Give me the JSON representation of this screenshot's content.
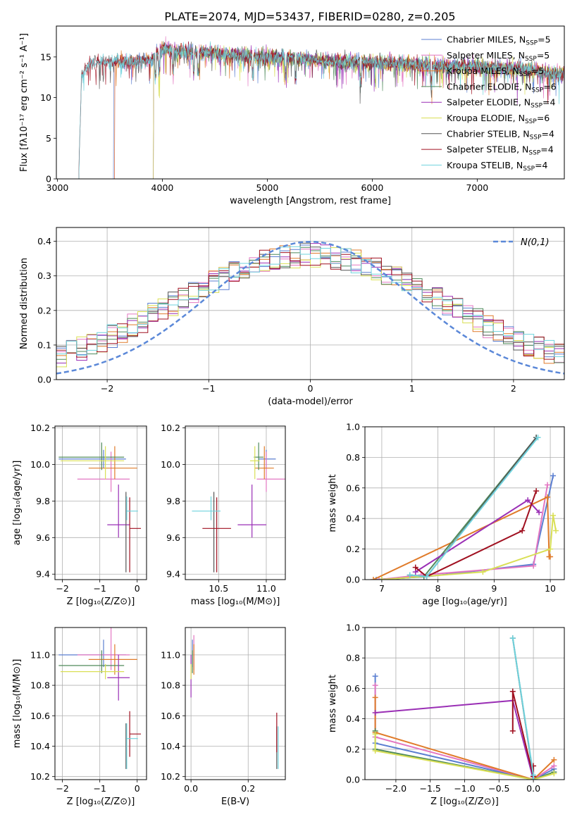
{
  "figure_title": "PLATE=2074, MJD=53437, FIBERID=0280, z=0.205",
  "colors": {
    "c0": "#5b7fd1",
    "c1": "#e377c2",
    "c2": "#e07b2a",
    "c3": "#4f8a5b",
    "c4": "#9a2fb5",
    "c5": "#d9df55",
    "c6": "#555555",
    "c7": "#a01020",
    "c8": "#6fd3dd",
    "ref": "#5b88d8",
    "grid": "#b0b0b0"
  },
  "chart_data": [
    {
      "id": "spectrum",
      "type": "line",
      "xlabel": "wavelength [Angstrom, rest frame]",
      "ylabel": "Flux [fλ10⁻¹⁷ erg cm⁻² s⁻¹ A⁻¹]",
      "xlim": [
        2990,
        7830
      ],
      "ylim": [
        0,
        18.8
      ],
      "xticks": [
        3000,
        4000,
        5000,
        6000,
        7000
      ],
      "yticks": [
        0,
        5,
        10,
        15
      ],
      "grid": false,
      "legend_position": "top-right",
      "legend": [
        {
          "text": "Chabrier MILES, N",
          "sub": "SSP",
          "eq": "=5",
          "color": "c0"
        },
        {
          "text": "Salpeter MILES, N",
          "sub": "SSP",
          "eq": "=5",
          "color": "c1"
        },
        {
          "text": "Kroupa MILES, N",
          "sub": "SSP",
          "eq": "=5",
          "color": "c2"
        },
        {
          "text": "Chabrier ELODIE, N",
          "sub": "SSP",
          "eq": "=6",
          "color": "c3"
        },
        {
          "text": "Salpeter ELODIE, N",
          "sub": "SSP",
          "eq": "=4",
          "color": "c4"
        },
        {
          "text": "Kroupa ELODIE, N",
          "sub": "SSP",
          "eq": "=6",
          "color": "c5"
        },
        {
          "text": "Chabrier STELIB, N",
          "sub": "SSP",
          "eq": "=4",
          "color": "c6"
        },
        {
          "text": "Salpeter STELIB, N",
          "sub": "SSP",
          "eq": "=4",
          "color": "c7"
        },
        {
          "text": "Kroupa STELIB, N",
          "sub": "SSP",
          "eq": "=4",
          "color": "c8"
        }
      ],
      "continuum": {
        "x": [
          3200,
          3230,
          3300,
          3500,
          3700,
          3900,
          4000,
          4100,
          4300,
          4500,
          4700,
          5000,
          5300,
          5600,
          6000,
          6400,
          6800,
          7200,
          7500,
          7700,
          7830
        ],
        "y": [
          0,
          12.5,
          14.2,
          14.5,
          14.4,
          14.6,
          16.0,
          15.8,
          15.6,
          15.5,
          15.2,
          15.0,
          14.8,
          14.5,
          14.3,
          14.1,
          13.9,
          13.6,
          13.4,
          13.0,
          12.9
        ]
      },
      "series": [
        {
          "model": "Chabrier MILES",
          "color": "c0",
          "start": 3530
        },
        {
          "model": "Salpeter MILES",
          "color": "c1",
          "start": 3540
        },
        {
          "model": "Kroupa MILES",
          "color": "c2",
          "start": 3540
        },
        {
          "model": "Chabrier ELODIE",
          "color": "c3",
          "start": 3910
        },
        {
          "model": "Salpeter ELODIE",
          "color": "c4",
          "start": 3910
        },
        {
          "model": "Kroupa ELODIE",
          "color": "c5",
          "start": 3910
        },
        {
          "model": "Chabrier STELIB",
          "color": "c6",
          "start": 3200
        },
        {
          "model": "Salpeter STELIB",
          "color": "c7",
          "start": 3200
        },
        {
          "model": "Kroupa STELIB",
          "color": "c8",
          "start": 3200
        }
      ]
    },
    {
      "id": "residuals",
      "type": "histogram",
      "xlabel": "(data-model)/error",
      "ylabel": "Normed distribution",
      "xlim": [
        -2.5,
        2.5
      ],
      "ylim": [
        0,
        0.44
      ],
      "xticks": [
        -2,
        -1,
        0,
        1,
        2
      ],
      "yticks": [
        0.0,
        0.1,
        0.2,
        0.3,
        0.4
      ],
      "grid": true,
      "bin_width": 0.1,
      "reference": {
        "label": "N(0,1)",
        "mean": 0,
        "sigma": 1
      },
      "legend_position": "top-right"
    },
    {
      "id": "age_vs_Z",
      "type": "errorbar",
      "xlabel": "Z [log₁₀(Z/Z⊙)]",
      "ylabel": "age  [log₁₀(age/yr)]",
      "xlim": [
        -2.2,
        0.25
      ],
      "ylim": [
        9.37,
        10.21
      ],
      "xticks": [
        -2,
        -1,
        0
      ],
      "yticks": [
        9.4,
        9.6,
        9.8,
        10.0,
        10.2
      ],
      "grid": true,
      "points": [
        {
          "color": "c0",
          "x": -0.9,
          "xerr": [
            1.2,
            0.6
          ],
          "y": 10.03,
          "yerr": [
            0.05,
            0.05
          ]
        },
        {
          "color": "c1",
          "x": -0.7,
          "xerr": [
            0.9,
            0.5
          ],
          "y": 9.92,
          "yerr": [
            0.07,
            0.15
          ]
        },
        {
          "color": "c2",
          "x": -0.6,
          "xerr": [
            0.7,
            0.6
          ],
          "y": 9.98,
          "yerr": [
            0.06,
            0.12
          ]
        },
        {
          "color": "c3",
          "x": -0.95,
          "xerr": [
            1.15,
            0.6
          ],
          "y": 10.04,
          "yerr": [
            0.07,
            0.08
          ]
        },
        {
          "color": "c4",
          "x": -0.5,
          "xerr": [
            0.3,
            0.3
          ],
          "y": 9.67,
          "yerr": [
            0.07,
            0.22
          ]
        },
        {
          "color": "c5",
          "x": -0.85,
          "xerr": [
            1.2,
            0.5
          ],
          "y": 10.02,
          "yerr": [
            0.1,
            0.08
          ]
        },
        {
          "color": "c6",
          "x": -0.3,
          "xerr": [
            0.0,
            0.0
          ],
          "y": 9.67,
          "yerr": [
            0.26,
            0.18
          ]
        },
        {
          "color": "c7",
          "x": -0.2,
          "xerr": [
            0.0,
            0.3
          ],
          "y": 9.65,
          "yerr": [
            0.24,
            0.17
          ]
        },
        {
          "color": "c8",
          "x": -0.28,
          "xerr": [
            0.0,
            0.3
          ],
          "y": 9.745,
          "yerr": [
            0.05,
            0.08
          ]
        }
      ]
    },
    {
      "id": "age_vs_mass",
      "type": "errorbar",
      "xlabel": "mass [log₁₀(M/M⊙)]",
      "ylabel": "",
      "xlim": [
        10.15,
        11.2
      ],
      "ylim": [
        9.37,
        10.21
      ],
      "xticks": [
        10.5,
        11.0
      ],
      "yticks": [
        9.4,
        9.6,
        9.8,
        10.0,
        10.2
      ],
      "grid": true,
      "points": [
        {
          "color": "c0",
          "x": 11.0,
          "xerr": [
            0.08,
            0.1
          ],
          "y": 10.03,
          "yerr": [
            0.05,
            0.05
          ]
        },
        {
          "color": "c1",
          "x": 11.0,
          "xerr": [
            0.1,
            0.2
          ],
          "y": 9.92,
          "yerr": [
            0.07,
            0.15
          ]
        },
        {
          "color": "c2",
          "x": 10.98,
          "xerr": [
            0.1,
            0.1
          ],
          "y": 9.98,
          "yerr": [
            0.06,
            0.12
          ]
        },
        {
          "color": "c3",
          "x": 10.92,
          "xerr": [
            0.05,
            0.05
          ],
          "y": 10.04,
          "yerr": [
            0.07,
            0.08
          ]
        },
        {
          "color": "c4",
          "x": 10.85,
          "xerr": [
            0.15,
            0.15
          ],
          "y": 9.67,
          "yerr": [
            0.07,
            0.22
          ]
        },
        {
          "color": "c5",
          "x": 10.88,
          "xerr": [
            0.05,
            0.05
          ],
          "y": 10.02,
          "yerr": [
            0.1,
            0.08
          ]
        },
        {
          "color": "c6",
          "x": 10.45,
          "xerr": [
            0.0,
            0.0
          ],
          "y": 9.67,
          "yerr": [
            0.26,
            0.18
          ]
        },
        {
          "color": "c7",
          "x": 10.48,
          "xerr": [
            0.15,
            0.15
          ],
          "y": 9.65,
          "yerr": [
            0.24,
            0.17
          ]
        },
        {
          "color": "c8",
          "x": 10.42,
          "xerr": [
            0.2,
            0.1
          ],
          "y": 9.745,
          "yerr": [
            0.05,
            0.08
          ]
        }
      ]
    },
    {
      "id": "weight_vs_age",
      "type": "line",
      "xlabel": "age  [log₁₀(age/yr)]",
      "ylabel": "mass weight",
      "xlim": [
        6.7,
        10.25
      ],
      "ylim": [
        0.0,
        1.0
      ],
      "xticks": [
        7,
        8,
        9,
        10
      ],
      "yticks": [
        0.0,
        0.2,
        0.4,
        0.6,
        0.8,
        1.0
      ],
      "grid": true,
      "series": [
        {
          "color": "c0",
          "x": [
            6.9,
            7.8,
            9.7,
            10.05
          ],
          "y": [
            0.0,
            0.02,
            0.1,
            0.68
          ]
        },
        {
          "color": "c1",
          "x": [
            6.95,
            7.7,
            9.7,
            9.95
          ],
          "y": [
            0.0,
            0.03,
            0.09,
            0.62
          ]
        },
        {
          "color": "c2",
          "x": [
            6.85,
            9.95,
            9.98,
            10.0
          ],
          "y": [
            0.0,
            0.54,
            0.15,
            0.15
          ]
        },
        {
          "color": "c3",
          "x": [
            7.0,
            7.75,
            9.75
          ],
          "y": [
            0.0,
            0.02,
            0.93
          ]
        },
        {
          "color": "c4",
          "x": [
            7.6,
            9.6,
            9.8
          ],
          "y": [
            0.05,
            0.52,
            0.44
          ]
        },
        {
          "color": "c5",
          "x": [
            7.0,
            8.8,
            10.0,
            10.05,
            10.1
          ],
          "y": [
            0.0,
            0.05,
            0.2,
            0.42,
            0.32
          ]
        },
        {
          "color": "c6",
          "x": [
            7.5,
            7.8,
            9.75
          ],
          "y": [
            0.03,
            0.02,
            0.93
          ]
        },
        {
          "color": "c7",
          "x": [
            7.6,
            7.8,
            9.5,
            9.75
          ],
          "y": [
            0.08,
            0.02,
            0.32,
            0.58
          ]
        },
        {
          "color": "c8",
          "x": [
            7.5,
            7.8,
            9.78
          ],
          "y": [
            0.03,
            0.02,
            0.93
          ]
        }
      ]
    },
    {
      "id": "mass_vs_Z",
      "type": "errorbar",
      "xlabel": "Z [log₁₀(Z/Z⊙)]",
      "ylabel": "mass [log₁₀(M/M⊙)]",
      "xlim": [
        -2.2,
        0.25
      ],
      "ylim": [
        10.18,
        11.18
      ],
      "xticks": [
        -2,
        -1,
        0
      ],
      "yticks": [
        10.2,
        10.4,
        10.6,
        10.8,
        11.0
      ],
      "grid": true,
      "points": [
        {
          "color": "c0",
          "x": -0.9,
          "xerr": [
            1.2,
            0.6
          ],
          "y": 11.0,
          "yerr": [
            0.08,
            0.1
          ]
        },
        {
          "color": "c1",
          "x": -0.7,
          "xerr": [
            0.9,
            0.5
          ],
          "y": 11.0,
          "yerr": [
            0.1,
            0.2
          ]
        },
        {
          "color": "c2",
          "x": -0.6,
          "xerr": [
            0.7,
            0.6
          ],
          "y": 10.97,
          "yerr": [
            0.1,
            0.1
          ]
        },
        {
          "color": "c3",
          "x": -0.95,
          "xerr": [
            1.15,
            0.6
          ],
          "y": 10.93,
          "yerr": [
            0.05,
            0.1
          ]
        },
        {
          "color": "c4",
          "x": -0.5,
          "xerr": [
            0.3,
            0.3
          ],
          "y": 10.85,
          "yerr": [
            0.15,
            0.15
          ]
        },
        {
          "color": "c5",
          "x": -0.85,
          "xerr": [
            1.2,
            0.5
          ],
          "y": 10.89,
          "yerr": [
            0.05,
            0.05
          ]
        },
        {
          "color": "c6",
          "x": -0.3,
          "xerr": [
            0.0,
            0.0
          ],
          "y": 10.45,
          "yerr": [
            0.2,
            0.1
          ]
        },
        {
          "color": "c7",
          "x": -0.2,
          "xerr": [
            0.0,
            0.3
          ],
          "y": 10.48,
          "yerr": [
            0.15,
            0.15
          ]
        },
        {
          "color": "c8",
          "x": -0.28,
          "xerr": [
            0.0,
            0.3
          ],
          "y": 10.45,
          "yerr": [
            0.2,
            0.1
          ]
        }
      ]
    },
    {
      "id": "mass_vs_EBV",
      "type": "errorbar",
      "xlabel": "E(B-V)",
      "ylabel": "",
      "xlim": [
        -0.02,
        0.33
      ],
      "ylim": [
        10.18,
        11.18
      ],
      "xticks": [
        0.0,
        0.2
      ],
      "yticks": [
        10.2,
        10.4,
        10.6,
        10.8,
        11.0
      ],
      "grid": true,
      "points": [
        {
          "color": "c0",
          "x": 0.005,
          "xerr": [
            0,
            0
          ],
          "y": 11.0,
          "yerr": [
            0.08,
            0.1
          ]
        },
        {
          "color": "c1",
          "x": 0.01,
          "xerr": [
            0,
            0
          ],
          "y": 11.0,
          "yerr": [
            0.1,
            0.13
          ]
        },
        {
          "color": "c2",
          "x": 0.01,
          "xerr": [
            0,
            0
          ],
          "y": 10.97,
          "yerr": [
            0.1,
            0.1
          ]
        },
        {
          "color": "c3",
          "x": 0.005,
          "xerr": [
            0,
            0
          ],
          "y": 10.93,
          "yerr": [
            0.05,
            0.1
          ]
        },
        {
          "color": "c4",
          "x": 0.0,
          "xerr": [
            0,
            0
          ],
          "y": 10.85,
          "yerr": [
            0.13,
            0.15
          ]
        },
        {
          "color": "c5",
          "x": 0.0,
          "xerr": [
            0,
            0
          ],
          "y": 10.89,
          "yerr": [
            0.05,
            0.05
          ]
        },
        {
          "color": "c6",
          "x": 0.3,
          "xerr": [
            0,
            0
          ],
          "y": 10.45,
          "yerr": [
            0.2,
            0.08
          ]
        },
        {
          "color": "c7",
          "x": 0.3,
          "xerr": [
            0,
            0
          ],
          "y": 10.48,
          "yerr": [
            0.12,
            0.14
          ]
        },
        {
          "color": "c8",
          "x": 0.305,
          "xerr": [
            0,
            0
          ],
          "y": 10.45,
          "yerr": [
            0.2,
            0.08
          ]
        }
      ]
    },
    {
      "id": "weight_vs_Z",
      "type": "line",
      "xlabel": "Z [log₁₀(Z/Z⊙)]",
      "ylabel": "mass weight",
      "xlim": [
        -2.45,
        0.45
      ],
      "ylim": [
        0.0,
        1.0
      ],
      "xticks": [
        -2.0,
        -1.5,
        -1.0,
        -0.5,
        0.0
      ],
      "yticks": [
        0.0,
        0.2,
        0.4,
        0.6,
        0.8,
        1.0
      ],
      "grid": true,
      "series": [
        {
          "color": "c0",
          "x": [
            -2.3,
            -2.3,
            0.0,
            0.3
          ],
          "y": [
            0.68,
            0.24,
            0.0,
            0.07
          ]
        },
        {
          "color": "c1",
          "x": [
            -2.3,
            -2.3,
            0.0,
            0.3
          ],
          "y": [
            0.62,
            0.28,
            0.0,
            0.09
          ]
        },
        {
          "color": "c2",
          "x": [
            -2.3,
            -2.3,
            0.0,
            0.3
          ],
          "y": [
            0.54,
            0.31,
            0.0,
            0.13
          ]
        },
        {
          "color": "c3",
          "x": [
            -2.3,
            -2.3,
            0.0,
            0.3
          ],
          "y": [
            0.32,
            0.2,
            0.0,
            0.05
          ]
        },
        {
          "color": "c4",
          "x": [
            -2.3,
            -0.3,
            0.0
          ],
          "y": [
            0.44,
            0.52,
            0.0
          ]
        },
        {
          "color": "c5",
          "x": [
            -2.3,
            -2.3,
            0.0,
            0.3
          ],
          "y": [
            0.3,
            0.19,
            0.0,
            0.04
          ]
        },
        {
          "color": "c6",
          "x": [
            -0.3,
            0.0,
            0.0
          ],
          "y": [
            0.93,
            0.02,
            0.0
          ]
        },
        {
          "color": "c7",
          "x": [
            -0.3,
            -0.3,
            0.0,
            0.0
          ],
          "y": [
            0.32,
            0.58,
            0.02,
            0.09
          ]
        },
        {
          "color": "c8",
          "x": [
            -0.3,
            0.0,
            0.0
          ],
          "y": [
            0.93,
            0.03,
            0.0
          ]
        }
      ]
    }
  ]
}
